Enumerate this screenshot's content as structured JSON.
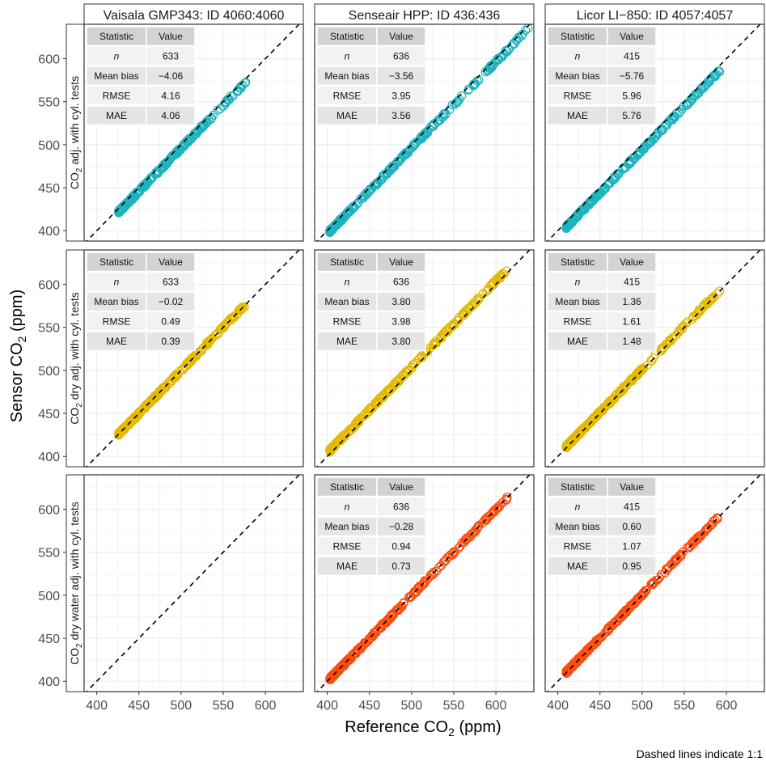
{
  "chart_data": {
    "type": "scatter",
    "x_axis": {
      "label_main": "Reference CO",
      "label_sub": "2",
      "label_unit": " (ppm)",
      "range": [
        385,
        645
      ],
      "ticks": [
        400,
        450,
        500,
        550,
        600
      ]
    },
    "y_axis": {
      "label_main": "Sensor CO",
      "label_sub": "2",
      "label_unit": " (ppm)",
      "range": [
        388,
        640
      ],
      "ticks": [
        400,
        450,
        500,
        550,
        600
      ]
    },
    "grid": true,
    "reference_line": "1:1 (dashed)",
    "caption": "Dashed lines indicate 1:1",
    "table_headers": [
      "Statistic",
      "Value"
    ],
    "columns": [
      {
        "title": "Vaisala GMP343: ID 4060:4060"
      },
      {
        "title": "Senseair HPP: ID 436:436"
      },
      {
        "title": "Licor LI−850: ID 4057:4057"
      }
    ],
    "rows": [
      {
        "strip_pre": "CO",
        "strip_sub": "2",
        "strip_post": " adj. with cyl. tests",
        "color": "#1FB3BF"
      },
      {
        "strip_pre": "CO",
        "strip_sub": "2",
        "strip_post": " dry adj. with cyl. tests",
        "color": "#E3BA00"
      },
      {
        "strip_pre": "CO",
        "strip_sub": "2",
        "strip_post": " dry water adj. with cyl. tests",
        "color": "#FF4C0D"
      }
    ],
    "panels": [
      {
        "row": 0,
        "col": 0,
        "x_min": 426,
        "x_max": 578,
        "offset": -4.06,
        "has_data": true,
        "stats": [
          {
            "name": "n",
            "value": "633"
          },
          {
            "name": "Mean bias",
            "value": "−4.06"
          },
          {
            "name": "RMSE",
            "value": "4.16"
          },
          {
            "name": "MAE",
            "value": "4.06"
          }
        ]
      },
      {
        "row": 0,
        "col": 1,
        "x_min": 403,
        "x_max": 640,
        "offset": -3.56,
        "has_data": true,
        "stats": [
          {
            "name": "n",
            "value": "636"
          },
          {
            "name": "Mean bias",
            "value": "−3.56"
          },
          {
            "name": "RMSE",
            "value": "3.95"
          },
          {
            "name": "MAE",
            "value": "3.56"
          }
        ]
      },
      {
        "row": 0,
        "col": 2,
        "x_min": 410,
        "x_max": 592,
        "offset": -5.76,
        "has_data": true,
        "stats": [
          {
            "name": "n",
            "value": "415"
          },
          {
            "name": "Mean bias",
            "value": "−5.76"
          },
          {
            "name": "RMSE",
            "value": "5.96"
          },
          {
            "name": "MAE",
            "value": "5.76"
          }
        ]
      },
      {
        "row": 1,
        "col": 0,
        "x_min": 426,
        "x_max": 578,
        "offset": -0.02,
        "has_data": true,
        "stats": [
          {
            "name": "n",
            "value": "633"
          },
          {
            "name": "Mean bias",
            "value": "−0.02"
          },
          {
            "name": "RMSE",
            "value": "0.49"
          },
          {
            "name": "MAE",
            "value": "0.39"
          }
        ]
      },
      {
        "row": 1,
        "col": 1,
        "x_min": 403,
        "x_max": 614,
        "offset": 3.8,
        "has_data": true,
        "stats": [
          {
            "name": "n",
            "value": "636"
          },
          {
            "name": "Mean bias",
            "value": "3.80"
          },
          {
            "name": "RMSE",
            "value": "3.98"
          },
          {
            "name": "MAE",
            "value": "3.80"
          }
        ]
      },
      {
        "row": 1,
        "col": 2,
        "x_min": 410,
        "x_max": 592,
        "offset": 1.36,
        "has_data": true,
        "stats": [
          {
            "name": "n",
            "value": "415"
          },
          {
            "name": "Mean bias",
            "value": "1.36"
          },
          {
            "name": "RMSE",
            "value": "1.61"
          },
          {
            "name": "MAE",
            "value": "1.48"
          }
        ]
      },
      {
        "row": 2,
        "col": 0,
        "has_data": false,
        "stats": []
      },
      {
        "row": 2,
        "col": 1,
        "x_min": 403,
        "x_max": 614,
        "offset": -0.28,
        "has_data": true,
        "stats": [
          {
            "name": "n",
            "value": "636"
          },
          {
            "name": "Mean bias",
            "value": "−0.28"
          },
          {
            "name": "RMSE",
            "value": "0.94"
          },
          {
            "name": "MAE",
            "value": "0.73"
          }
        ]
      },
      {
        "row": 2,
        "col": 2,
        "x_min": 410,
        "x_max": 592,
        "offset": 0.6,
        "has_data": true,
        "stats": [
          {
            "name": "n",
            "value": "415"
          },
          {
            "name": "Mean bias",
            "value": "0.60"
          },
          {
            "name": "RMSE",
            "value": "1.07"
          },
          {
            "name": "MAE",
            "value": "0.95"
          }
        ]
      }
    ]
  }
}
